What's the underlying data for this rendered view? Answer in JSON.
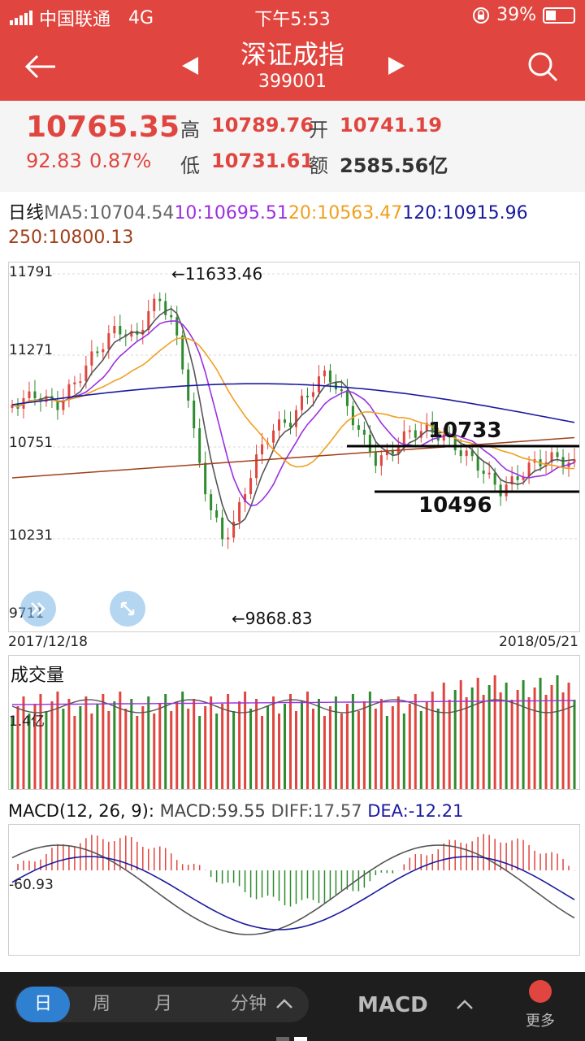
{
  "status": {
    "carrier": "中国联通",
    "network": "4G",
    "time": "下午5:53",
    "battery": "39%",
    "battery_level": 0.39
  },
  "nav": {
    "title": "深证成指",
    "code": "399001"
  },
  "quote": {
    "price": "10765.35",
    "change": "92.83",
    "change_pct": "0.87%",
    "high_label": "高",
    "high": "10789.76",
    "open_label": "开",
    "open": "10741.19",
    "low_label": "低",
    "low": "10731.61",
    "amount_label": "额",
    "amount": "2585.56亿"
  },
  "ma": {
    "prefix": "日线",
    "ma5": "MA5:10704.54",
    "ma10": "10:10695.51",
    "ma20": "20:10563.47",
    "ma120": "120:10915.96",
    "ma250": "250:10800.13"
  },
  "kline": {
    "y_labels": [
      "11791",
      "11271",
      "10751",
      "10231",
      "9711"
    ],
    "max_note": "←11633.46",
    "min_note": "←9868.83",
    "start_date": "2017/12/18",
    "end_date": "2018/05/21",
    "annotation_top": "10733",
    "annotation_bottom": "10496"
  },
  "volume": {
    "title": "成交量",
    "y_label": "1.4亿"
  },
  "macd": {
    "title": "MACD(12, 26, 9):",
    "macd": "MACD:59.55",
    "diff": "DIFF:17.57",
    "dea": "DEA:-12.21",
    "y_label": "-60.93"
  },
  "tabs": [
    "日",
    "周",
    "月",
    "分钟"
  ],
  "indicator": "MACD",
  "more": "更多",
  "colors": {
    "up": "#e0463f",
    "down": "#2e8b2e",
    "ma5": "#555555",
    "ma10": "#9b30e0",
    "ma20": "#f0a020",
    "ma120": "#1a1aa0",
    "ma250": "#a0401a",
    "accent": "#e0463f"
  }
}
